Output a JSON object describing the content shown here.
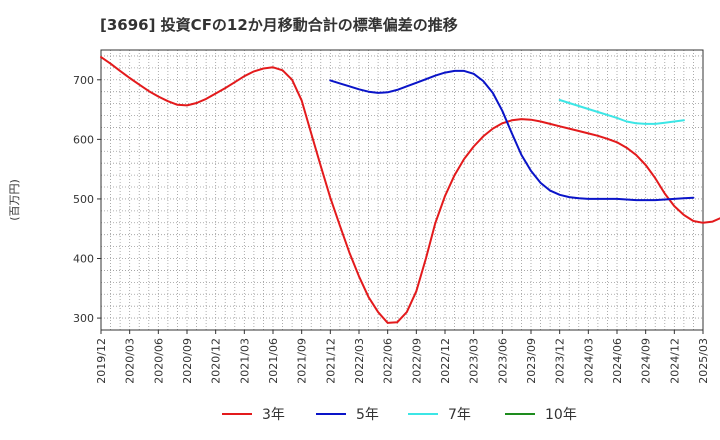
{
  "chart_data": {
    "type": "line",
    "title": "[3696]  投資CFの12か月移動合計の標準偏差の推移",
    "ylabel": "(百万円)",
    "xlabel": "",
    "ylim": [
      280,
      750
    ],
    "yticks": [
      300,
      400,
      500,
      600,
      700
    ],
    "xrange": [
      "2019-12",
      "2025-03"
    ],
    "xtick_labels": [
      "2019/12",
      "2020/03",
      "2020/06",
      "2020/09",
      "2020/12",
      "2021/03",
      "2021/06",
      "2021/09",
      "2021/12",
      "2022/03",
      "2022/06",
      "2022/09",
      "2022/12",
      "2023/03",
      "2023/06",
      "2023/09",
      "2023/12",
      "2024/03",
      "2024/06",
      "2024/09",
      "2024/12",
      "2025/03"
    ],
    "grid": true,
    "legend_position": "bottom",
    "series": [
      {
        "name": "3年",
        "color": "#e31a1c",
        "points": [
          [
            "2019-12",
            738
          ],
          [
            "2020-01",
            727
          ],
          [
            "2020-02",
            715
          ],
          [
            "2020-03",
            703
          ],
          [
            "2020-04",
            692
          ],
          [
            "2020-05",
            681
          ],
          [
            "2020-06",
            672
          ],
          [
            "2020-07",
            664
          ],
          [
            "2020-08",
            658
          ],
          [
            "2020-09",
            657
          ],
          [
            "2020-10",
            661
          ],
          [
            "2020-11",
            668
          ],
          [
            "2020-12",
            677
          ],
          [
            "2021-01",
            686
          ],
          [
            "2021-02",
            696
          ],
          [
            "2021-03",
            706
          ],
          [
            "2021-04",
            714
          ],
          [
            "2021-05",
            719
          ],
          [
            "2021-06",
            721
          ],
          [
            "2021-07",
            716
          ],
          [
            "2021-08",
            700
          ],
          [
            "2021-09",
            665
          ],
          [
            "2021-10",
            610
          ],
          [
            "2021-11",
            555
          ],
          [
            "2021-12",
            502
          ],
          [
            "2022-01",
            455
          ],
          [
            "2022-02",
            410
          ],
          [
            "2022-03",
            370
          ],
          [
            "2022-04",
            335
          ],
          [
            "2022-05",
            310
          ],
          [
            "2022-06",
            292
          ],
          [
            "2022-07",
            293
          ],
          [
            "2022-08",
            310
          ],
          [
            "2022-09",
            345
          ],
          [
            "2022-10",
            400
          ],
          [
            "2022-11",
            460
          ],
          [
            "2022-12",
            505
          ],
          [
            "2023-01",
            540
          ],
          [
            "2023-02",
            567
          ],
          [
            "2023-03",
            588
          ],
          [
            "2023-04",
            605
          ],
          [
            "2023-05",
            618
          ],
          [
            "2023-06",
            627
          ],
          [
            "2023-07",
            632
          ],
          [
            "2023-08",
            634
          ],
          [
            "2023-09",
            633
          ],
          [
            "2023-10",
            630
          ],
          [
            "2023-11",
            626
          ],
          [
            "2023-12",
            622
          ],
          [
            "2024-01",
            618
          ],
          [
            "2024-02",
            614
          ],
          [
            "2024-03",
            610
          ],
          [
            "2024-04",
            606
          ],
          [
            "2024-05",
            601
          ],
          [
            "2024-06",
            595
          ],
          [
            "2024-07",
            586
          ],
          [
            "2024-08",
            574
          ],
          [
            "2024-09",
            557
          ],
          [
            "2024-10",
            535
          ],
          [
            "2024-11",
            509
          ],
          [
            "2024-12",
            488
          ],
          [
            "2025-01",
            473
          ],
          [
            "2025-02",
            463
          ],
          [
            "2025-03",
            460
          ],
          [
            "2025-04",
            462
          ],
          [
            "2025-05",
            469
          ]
        ]
      },
      {
        "name": "5年",
        "color": "#0a14c8",
        "points": [
          [
            "2021-12",
            699
          ],
          [
            "2022-01",
            694
          ],
          [
            "2022-02",
            689
          ],
          [
            "2022-03",
            684
          ],
          [
            "2022-04",
            680
          ],
          [
            "2022-05",
            678
          ],
          [
            "2022-06",
            679
          ],
          [
            "2022-07",
            683
          ],
          [
            "2022-08",
            689
          ],
          [
            "2022-09",
            695
          ],
          [
            "2022-10",
            701
          ],
          [
            "2022-11",
            707
          ],
          [
            "2022-12",
            712
          ],
          [
            "2023-01",
            715
          ],
          [
            "2023-02",
            715
          ],
          [
            "2023-03",
            710
          ],
          [
            "2023-04",
            698
          ],
          [
            "2023-05",
            678
          ],
          [
            "2023-06",
            648
          ],
          [
            "2023-07",
            610
          ],
          [
            "2023-08",
            574
          ],
          [
            "2023-09",
            547
          ],
          [
            "2023-10",
            527
          ],
          [
            "2023-11",
            514
          ],
          [
            "2023-12",
            507
          ],
          [
            "2024-01",
            503
          ],
          [
            "2024-02",
            501
          ],
          [
            "2024-03",
            500
          ],
          [
            "2024-04",
            500
          ],
          [
            "2024-05",
            500
          ],
          [
            "2024-06",
            500
          ],
          [
            "2024-07",
            499
          ],
          [
            "2024-08",
            498
          ],
          [
            "2024-09",
            498
          ],
          [
            "2024-10",
            498
          ],
          [
            "2024-11",
            499
          ],
          [
            "2024-12",
            500
          ],
          [
            "2025-01",
            501
          ],
          [
            "2025-02",
            502
          ]
        ]
      },
      {
        "name": "7年",
        "color": "#3ce6e6",
        "points": [
          [
            "2023-12",
            666
          ],
          [
            "2024-01",
            661
          ],
          [
            "2024-02",
            656
          ],
          [
            "2024-03",
            651
          ],
          [
            "2024-04",
            646
          ],
          [
            "2024-05",
            641
          ],
          [
            "2024-06",
            636
          ],
          [
            "2024-07",
            630
          ],
          [
            "2024-08",
            627
          ],
          [
            "2024-09",
            626
          ],
          [
            "2024-10",
            626
          ],
          [
            "2024-11",
            628
          ],
          [
            "2024-12",
            630
          ],
          [
            "2025-01",
            632
          ]
        ]
      },
      {
        "name": "10年",
        "color": "#1e8c1e",
        "points": []
      }
    ]
  }
}
